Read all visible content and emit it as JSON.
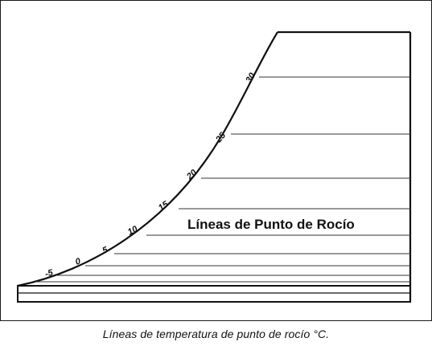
{
  "diagram": {
    "label": "Líneas de Punto de Rocío",
    "tick_labels": [
      "-5",
      "0",
      "5",
      "10",
      "15",
      "20",
      "25",
      "30"
    ]
  },
  "caption": "Líneas de temperatura de punto de rocío  °C."
}
